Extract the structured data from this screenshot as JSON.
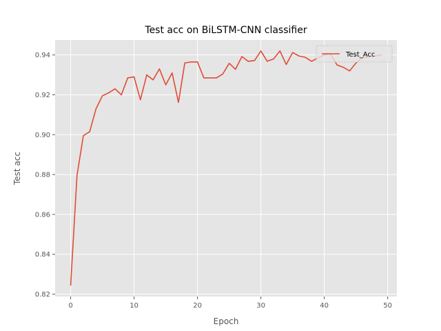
{
  "chart_data": {
    "type": "line",
    "title": "Test acc on BiLSTM-CNN classifier",
    "xlabel": "Epoch",
    "ylabel": "Test acc",
    "xlim": [
      -2.45,
      51.45
    ],
    "ylim": [
      0.8188,
      0.9475
    ],
    "xticks": [
      0,
      10,
      20,
      30,
      40,
      50
    ],
    "yticks": [
      0.82,
      0.84,
      0.86,
      0.88,
      0.9,
      0.92,
      0.94
    ],
    "ytick_labels": [
      "0.82",
      "0.84",
      "0.86",
      "0.88",
      "0.90",
      "0.92",
      "0.94"
    ],
    "grid": true,
    "legend_position": "top-right",
    "series": [
      {
        "name": "Test_Acc",
        "color": "#E24A33",
        "x": [
          0,
          1,
          2,
          3,
          4,
          5,
          6,
          7,
          8,
          9,
          10,
          11,
          12,
          13,
          14,
          15,
          16,
          17,
          18,
          19,
          20,
          21,
          22,
          23,
          24,
          25,
          26,
          27,
          28,
          29,
          30,
          31,
          32,
          33,
          34,
          35,
          36,
          37,
          38,
          39,
          40,
          41,
          42,
          43,
          44,
          45,
          46,
          47,
          48,
          49
        ],
        "y": [
          0.8245,
          0.8795,
          0.8995,
          0.9015,
          0.913,
          0.9195,
          0.921,
          0.923,
          0.92,
          0.9285,
          0.929,
          0.9175,
          0.93,
          0.9275,
          0.933,
          0.925,
          0.931,
          0.9162,
          0.936,
          0.9365,
          0.9365,
          0.9285,
          0.9285,
          0.9285,
          0.9305,
          0.9358,
          0.9328,
          0.9392,
          0.9368,
          0.9372,
          0.942,
          0.9368,
          0.938,
          0.942,
          0.9352,
          0.9412,
          0.9395,
          0.9388,
          0.9368,
          0.9385,
          0.94,
          0.9405,
          0.935,
          0.9338,
          0.932,
          0.936,
          0.9385,
          0.939,
          0.9395,
          0.94
        ]
      }
    ]
  },
  "style": {
    "plot_background": "#E5E5E5",
    "grid_color": "#FFFFFF",
    "tick_color": "#555555"
  }
}
